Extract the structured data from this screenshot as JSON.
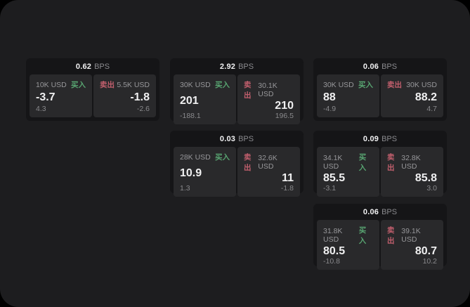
{
  "labels": {
    "buy": "买入",
    "sell": "卖出",
    "bps_unit": "BPS"
  },
  "colors": {
    "background": "#000000",
    "panel": "#1d1d1f",
    "card": "#151517",
    "subcard": "#29292b",
    "buy_green": "#58a471",
    "sell_red": "#c25f6d",
    "text_primary": "#f0f0f1",
    "text_muted": "#8a8a8e"
  },
  "cards": [
    {
      "bps": "0.62",
      "buy": {
        "size": "10K USD",
        "price": "-3.7",
        "change": "4.3"
      },
      "sell": {
        "size": "5.5K USD",
        "price": "-1.8",
        "change": "-2.6"
      }
    },
    {
      "bps": "2.92",
      "buy": {
        "size": "30K USD",
        "price": "201",
        "change": "-188.1"
      },
      "sell": {
        "size": "30.1K USD",
        "price": "210",
        "change": "196.5"
      }
    },
    {
      "bps": "0.06",
      "buy": {
        "size": "30K USD",
        "price": "88",
        "change": "-4.9"
      },
      "sell": {
        "size": "30K USD",
        "price": "88.2",
        "change": "4.7"
      }
    },
    {
      "bps": "0.03",
      "buy": {
        "size": "28K USD",
        "price": "10.9",
        "change": "1.3"
      },
      "sell": {
        "size": "32.6K USD",
        "price": "11",
        "change": "-1.8"
      }
    },
    {
      "bps": "0.09",
      "buy": {
        "size": "34.1K USD",
        "price": "85.5",
        "change": "-3.1"
      },
      "sell": {
        "size": "32.8K USD",
        "price": "85.8",
        "change": "3.0"
      }
    },
    {
      "bps": "0.06",
      "buy": {
        "size": "31.8K USD",
        "price": "80.5",
        "change": "-10.8"
      },
      "sell": {
        "size": "39.1K USD",
        "price": "80.7",
        "change": "10.2"
      }
    }
  ]
}
